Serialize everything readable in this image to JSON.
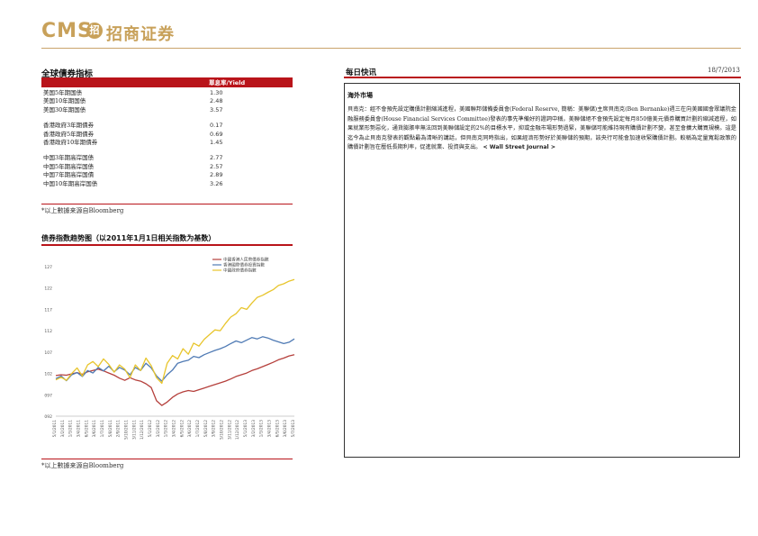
{
  "brand": {
    "latin": "CMS",
    "mark": "招",
    "chinese": "招商证券"
  },
  "left": {
    "title": "全球債券指标",
    "header_label": "單息率/Yield",
    "rows": [
      {
        "name": "美国5年期国债",
        "value": "1.30"
      },
      {
        "name": "美国10年期国债",
        "value": "2.48"
      },
      {
        "name": "美国30年期国债",
        "value": "3.57"
      },
      {
        "name": "香港政府3年期債券",
        "value": "0.17"
      },
      {
        "name": "香港政府5年期債券",
        "value": "0.69"
      },
      {
        "name": "香港政府10年期債券",
        "value": "1.45"
      },
      {
        "name": "中国3年期高岸国债",
        "value": "2.77"
      },
      {
        "name": "中国5年期高岸国债",
        "value": "2.57"
      },
      {
        "name": "中国7年期高岸国債",
        "value": "2.89"
      },
      {
        "name": "中国10年期高岸国债",
        "value": "3.26"
      }
    ],
    "source": "*以上數據来源自Bloomberg",
    "chart_title": "债券指数趋势图（以2011年1月1日相关指数为基数）",
    "chart_source": "*以上數據来源自Bloomberg"
  },
  "right": {
    "title": "每日快讯",
    "date": "18/7/2013",
    "section": "海外市場",
    "body": "貝南克：經不會預先設定購債計劃縮減進程，美國聯邦儲備委員會(Federal Reserve, 簡稱：美聯儲)主席貝南克(Ben Bernanke)週三在向美國國會眾議院金融服務委員會(House Financial Services Committee)發表的事先準備好的證詞中稱，美聯儲絕不會預先設定每月850億美元債券購買計劃的縮減進程，如果就業形勢惡化，通貨膨脹率無法回到美聯儲設定的2%的目標水平，抑或金融市場形勢過緊，美聯儲可能維持現有購債計劃不變，甚至會擴大購買規模。這是迄今為止貝南克發表的觀點最為清晰的講話，但貝南克同時指出，如果經濟形勢好於美聯儲的預期，該央行可能會加速收緊購債計劃。較稱為定量寬鬆政策的購債計劃旨在壓低長期利率，促進就業、投資與支出。",
    "tail": "< Wall Street Journal >"
  },
  "chart_data": {
    "type": "line",
    "title": "债券指数趋势图（以2011年1月1日相关指数为基数）",
    "ylim": [
      92,
      127
    ],
    "yticks": [
      "127",
      "122",
      "117",
      "112",
      "107",
      "102",
      "097",
      "092"
    ],
    "xticks": [
      "5/1/2011",
      "3/2/2011",
      "1/3/2011",
      "3/4/2011",
      "6/5/2011",
      "3/6/2011",
      "1/7/2011",
      "5/8/2011",
      "2/9/2011",
      "5/10/2011",
      "3/11/2011",
      "1/12/2011",
      "5/1/2012",
      "3/2/2012",
      "1/3/2012",
      "3/4/2012",
      "6/5/2012",
      "3/6/2012",
      "1/7/2012",
      "5/8/2012",
      "3/9/2012",
      "5/10/2012",
      "3/11/2012",
      "1/12/2012",
      "5/1/2013",
      "3/2/2013",
      "1/3/2013",
      "3/4/2013",
      "6/5/2013",
      "3/6/2013",
      "5/7/2013"
    ],
    "legend": "top-right",
    "series": [
      {
        "name": "中國香港人民幣債券指數",
        "color": "#b5403c",
        "values": [
          101.5,
          101.7,
          101.6,
          101.9,
          102.2,
          101.8,
          102.4,
          102.7,
          103.0,
          102.6,
          102.1,
          101.6,
          100.9,
          100.4,
          101.0,
          100.5,
          100.2,
          99.6,
          98.7,
          95.6,
          94.5,
          95.3,
          96.4,
          97.2,
          97.7,
          98.0,
          97.8,
          98.2,
          98.6,
          99.0,
          99.4,
          99.8,
          100.2,
          100.7,
          101.3,
          101.7,
          102.1,
          102.7,
          103.1,
          103.6,
          104.1,
          104.6,
          105.2,
          105.6,
          106.1,
          106.4
        ]
      },
      {
        "name": "香港國際債券投資指數",
        "color": "#4f7ab4",
        "values": [
          100.8,
          101.4,
          100.3,
          101.7,
          102.2,
          101.3,
          102.7,
          102.1,
          103.4,
          102.6,
          103.7,
          102.4,
          103.4,
          102.8,
          101.7,
          103.4,
          102.7,
          104.4,
          103.3,
          101.4,
          100.2,
          101.7,
          102.8,
          104.4,
          104.8,
          105.1,
          106.0,
          105.7,
          106.4,
          106.9,
          107.4,
          107.8,
          108.3,
          109.0,
          109.6,
          109.2,
          109.8,
          110.4,
          110.1,
          110.6,
          110.3,
          109.8,
          109.4,
          109.0,
          109.3,
          110.1
        ]
      },
      {
        "name": "中國政府債券指數",
        "color": "#e8c52c",
        "values": [
          100.5,
          101.1,
          100.4,
          102.0,
          103.3,
          101.4,
          104.0,
          104.8,
          103.6,
          105.4,
          104.1,
          102.3,
          104.0,
          103.0,
          101.0,
          104.0,
          102.7,
          105.6,
          103.8,
          101.0,
          99.7,
          104.4,
          106.2,
          105.4,
          107.8,
          106.5,
          109.1,
          108.4,
          110.0,
          111.1,
          112.2,
          112.0,
          113.7,
          115.2,
          116.0,
          117.4,
          117.0,
          118.5,
          119.8,
          120.3,
          121.0,
          121.6,
          122.6,
          123.0,
          123.6,
          124.0
        ]
      }
    ]
  }
}
